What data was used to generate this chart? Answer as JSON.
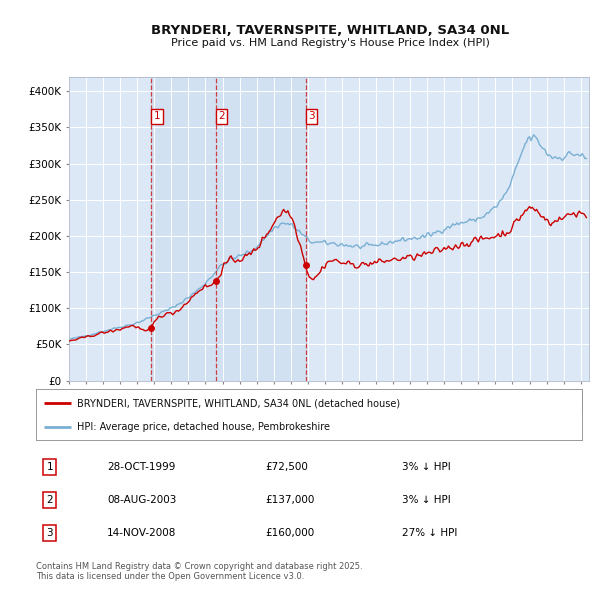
{
  "title": "BRYNDERI, TAVERNSPITE, WHITLAND, SA34 0NL",
  "subtitle": "Price paid vs. HM Land Registry's House Price Index (HPI)",
  "ytick_values": [
    0,
    50000,
    100000,
    150000,
    200000,
    250000,
    300000,
    350000,
    400000
  ],
  "ylim": [
    0,
    420000
  ],
  "xlim_start": 1995.0,
  "xlim_end": 2025.5,
  "background_color": "#ffffff",
  "plot_bg_color": "#dce8f5",
  "grid_color": "#ffffff",
  "line_color_property": "#cc0000",
  "line_color_hpi": "#7aafd4",
  "vline_color": "#cc2222",
  "shade_between_dates": true,
  "purchase_dates": [
    1999.82,
    2003.6,
    2008.87
  ],
  "purchase_prices": [
    72500,
    137000,
    160000
  ],
  "purchase_labels": [
    "1",
    "2",
    "3"
  ],
  "legend_property": "BRYNDERI, TAVERNSPITE, WHITLAND, SA34 0NL (detached house)",
  "legend_hpi": "HPI: Average price, detached house, Pembrokeshire",
  "table_data": [
    {
      "num": "1",
      "date": "28-OCT-1999",
      "price": "£72,500",
      "change": "3% ↓ HPI"
    },
    {
      "num": "2",
      "date": "08-AUG-2003",
      "price": "£137,000",
      "change": "3% ↓ HPI"
    },
    {
      "num": "3",
      "date": "14-NOV-2008",
      "price": "£160,000",
      "change": "27% ↓ HPI"
    }
  ],
  "footer": "Contains HM Land Registry data © Crown copyright and database right 2025.\nThis data is licensed under the Open Government Licence v3.0."
}
